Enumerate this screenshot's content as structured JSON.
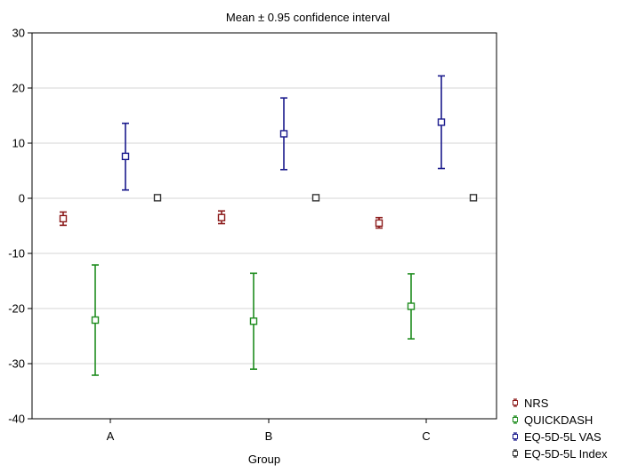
{
  "chart_data": {
    "type": "scatter",
    "title": "Mean ± 0.95 confidence interval",
    "xlabel": "Group",
    "ylabel": "",
    "categories": [
      "A",
      "B",
      "C"
    ],
    "ylim": [
      -40,
      30
    ],
    "yticks": [
      "30",
      "20",
      "10",
      "0",
      "-10",
      "-20",
      "-30",
      "-40"
    ],
    "grid": true,
    "legend_position": "bottom-right",
    "series": [
      {
        "name": "NRS",
        "color": "#8B1A1A",
        "mean": [
          -3.7,
          -3.5,
          -4.5
        ],
        "lower": [
          -4.9,
          -4.6,
          -5.4
        ],
        "upper": [
          -2.5,
          -2.3,
          -3.5
        ]
      },
      {
        "name": "QUICKDASH",
        "color": "#1E8C1E",
        "mean": [
          -22.1,
          -22.3,
          -19.6
        ],
        "lower": [
          -32.1,
          -31.0,
          -25.5
        ],
        "upper": [
          -12.1,
          -13.6,
          -13.7
        ]
      },
      {
        "name": "EQ-5D-5L VAS",
        "color": "#1A1A8C",
        "mean": [
          7.6,
          11.7,
          13.8
        ],
        "lower": [
          1.5,
          5.2,
          5.4
        ],
        "upper": [
          13.6,
          18.2,
          22.2
        ]
      },
      {
        "name": "EQ-5D-5L Index",
        "color": "#333333",
        "mean": [
          0.1,
          0.1,
          0.1
        ],
        "lower": [
          0.0,
          0.0,
          0.0
        ],
        "upper": [
          0.2,
          0.2,
          0.2
        ]
      }
    ]
  }
}
